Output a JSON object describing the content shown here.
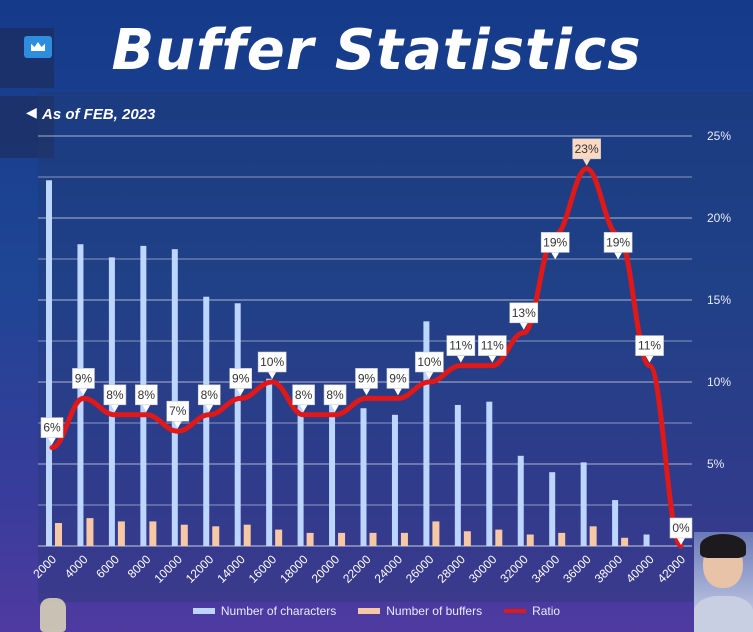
{
  "title": "Buffer Statistics",
  "subtitle": "As of FEB, 2023",
  "colors": {
    "characters": "#bcd6ff",
    "buffers": "#f7c8a6",
    "ratio": "#e01818",
    "grid": "#d8deea",
    "label_bg": "#ffffff",
    "label_peak_bg": "#fbd9c2"
  },
  "icons": {
    "crown": "crown-icon",
    "sound": "speaker-icon"
  },
  "chart_data": {
    "type": "bar",
    "categories": [
      "2000",
      "4000",
      "6000",
      "8000",
      "10000",
      "12000",
      "14000",
      "16000",
      "18000",
      "20000",
      "22000",
      "24000",
      "26000",
      "28000",
      "30000",
      "32000",
      "34000",
      "36000",
      "38000",
      "40000",
      "42000"
    ],
    "series": [
      {
        "name": "Number of characters",
        "type": "bar",
        "axis": "left",
        "values": [
          22.3,
          18.4,
          17.6,
          18.3,
          18.1,
          15.2,
          14.8,
          10.2,
          9.0,
          8.7,
          8.4,
          8.0,
          13.7,
          8.6,
          8.8,
          5.5,
          4.5,
          5.1,
          2.8,
          0.7,
          0
        ]
      },
      {
        "name": "Number of buffers",
        "type": "bar",
        "axis": "left",
        "values": [
          1.4,
          1.7,
          1.5,
          1.5,
          1.3,
          1.2,
          1.3,
          1.0,
          0.8,
          0.8,
          0.8,
          0.8,
          1.5,
          0.9,
          1.0,
          0.7,
          0.8,
          1.2,
          0.5,
          0,
          0
        ]
      },
      {
        "name": "Ratio",
        "type": "line",
        "axis": "right",
        "values": [
          6,
          9,
          8,
          8,
          7,
          8,
          9,
          10,
          8,
          8,
          9,
          9,
          10,
          11,
          11,
          13,
          19,
          23,
          19,
          11,
          0
        ],
        "labels": [
          "6%",
          "9%",
          "8%",
          "8%",
          "7%",
          "8%",
          "9%",
          "10%",
          "8%",
          "8%",
          "9%",
          "9%",
          "10%",
          "11%",
          "11%",
          "13%",
          "19%",
          "23%",
          "19%",
          "11%",
          "0%"
        ]
      }
    ],
    "y2_ticks": [
      "5%",
      "10%",
      "15%",
      "20%",
      "25%"
    ],
    "y2lim": [
      0,
      27
    ],
    "grid": true,
    "legend_position": "bottom"
  }
}
